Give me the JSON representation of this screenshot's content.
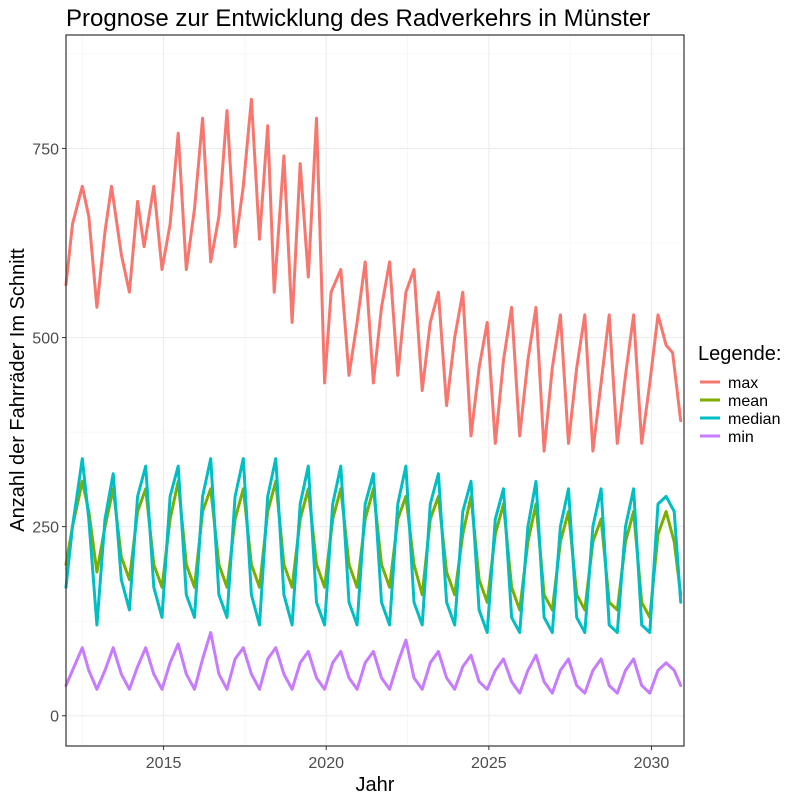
{
  "chart_data": {
    "type": "line",
    "title": "Prognose zur Entwicklung des Radverkehrs in  Münster",
    "xlabel": "Jahr",
    "ylabel": "Anzahl der Fahrräder Im Schnitt",
    "xlim": [
      2012.0,
      2031.0
    ],
    "ylim": [
      -40,
      900
    ],
    "x_ticks": [
      2015,
      2020,
      2025,
      2030
    ],
    "y_ticks": [
      0,
      250,
      500,
      750
    ],
    "grid": true,
    "legend": {
      "title": "Legende:",
      "placement": "right",
      "entries": [
        "max",
        "mean",
        "median",
        "min"
      ]
    },
    "series": [
      {
        "name": "max",
        "color": "#F8766D",
        "x": [
          2012.0,
          2012.2,
          2012.5,
          2012.7,
          2012.95,
          2013.2,
          2013.4,
          2013.7,
          2013.95,
          2014.2,
          2014.4,
          2014.7,
          2014.95,
          2015.2,
          2015.45,
          2015.7,
          2015.95,
          2016.2,
          2016.45,
          2016.7,
          2016.95,
          2017.2,
          2017.45,
          2017.7,
          2017.95,
          2018.2,
          2018.4,
          2018.7,
          2018.95,
          2019.2,
          2019.45,
          2019.7,
          2019.95,
          2020.15,
          2020.45,
          2020.7,
          2020.95,
          2021.2,
          2021.45,
          2021.7,
          2021.95,
          2022.2,
          2022.45,
          2022.7,
          2022.95,
          2023.2,
          2023.45,
          2023.7,
          2023.95,
          2024.2,
          2024.45,
          2024.7,
          2024.95,
          2025.2,
          2025.45,
          2025.7,
          2025.95,
          2026.2,
          2026.45,
          2026.7,
          2026.95,
          2027.2,
          2027.45,
          2027.7,
          2027.95,
          2028.2,
          2028.45,
          2028.7,
          2028.95,
          2029.2,
          2029.45,
          2029.7,
          2029.95,
          2030.2,
          2030.45,
          2030.65,
          2030.9
        ],
        "y": [
          570,
          650,
          700,
          660,
          540,
          640,
          700,
          610,
          560,
          680,
          620,
          700,
          590,
          650,
          770,
          590,
          670,
          790,
          600,
          660,
          800,
          620,
          700,
          815,
          630,
          780,
          560,
          740,
          520,
          730,
          580,
          790,
          440,
          560,
          590,
          450,
          520,
          600,
          440,
          540,
          600,
          450,
          560,
          590,
          430,
          520,
          560,
          410,
          500,
          560,
          370,
          460,
          520,
          360,
          470,
          540,
          370,
          470,
          540,
          350,
          460,
          530,
          360,
          460,
          530,
          350,
          440,
          530,
          360,
          450,
          530,
          360,
          440,
          530,
          490,
          480,
          390
        ]
      },
      {
        "name": "mean",
        "color": "#7CAE00",
        "x": [
          2012.0,
          2012.2,
          2012.5,
          2012.7,
          2012.95,
          2013.2,
          2013.45,
          2013.7,
          2013.95,
          2014.2,
          2014.45,
          2014.7,
          2014.95,
          2015.2,
          2015.45,
          2015.7,
          2015.95,
          2016.2,
          2016.45,
          2016.7,
          2016.95,
          2017.2,
          2017.45,
          2017.7,
          2017.95,
          2018.2,
          2018.45,
          2018.7,
          2018.95,
          2019.2,
          2019.45,
          2019.7,
          2019.95,
          2020.2,
          2020.45,
          2020.7,
          2020.95,
          2021.2,
          2021.45,
          2021.7,
          2021.95,
          2022.2,
          2022.45,
          2022.7,
          2022.95,
          2023.2,
          2023.45,
          2023.7,
          2023.95,
          2024.2,
          2024.45,
          2024.7,
          2024.95,
          2025.2,
          2025.45,
          2025.7,
          2025.95,
          2026.2,
          2026.45,
          2026.7,
          2026.95,
          2027.2,
          2027.45,
          2027.7,
          2027.95,
          2028.2,
          2028.45,
          2028.7,
          2028.95,
          2029.2,
          2029.45,
          2029.7,
          2029.95,
          2030.2,
          2030.45,
          2030.7,
          2030.9
        ],
        "y": [
          200,
          250,
          310,
          270,
          190,
          250,
          300,
          210,
          180,
          270,
          300,
          200,
          170,
          260,
          310,
          200,
          170,
          270,
          300,
          200,
          170,
          260,
          300,
          200,
          170,
          270,
          310,
          200,
          170,
          260,
          300,
          200,
          170,
          260,
          300,
          200,
          170,
          260,
          300,
          200,
          170,
          260,
          290,
          200,
          160,
          260,
          290,
          190,
          160,
          240,
          290,
          180,
          150,
          240,
          280,
          170,
          140,
          230,
          280,
          160,
          140,
          230,
          270,
          160,
          140,
          230,
          260,
          150,
          140,
          230,
          270,
          150,
          130,
          240,
          270,
          230,
          160
        ]
      },
      {
        "name": "median",
        "color": "#00BFC4",
        "x": [
          2012.0,
          2012.2,
          2012.5,
          2012.7,
          2012.95,
          2013.2,
          2013.45,
          2013.7,
          2013.95,
          2014.2,
          2014.45,
          2014.7,
          2014.95,
          2015.2,
          2015.45,
          2015.7,
          2015.95,
          2016.2,
          2016.45,
          2016.7,
          2016.95,
          2017.2,
          2017.45,
          2017.7,
          2017.95,
          2018.2,
          2018.45,
          2018.7,
          2018.95,
          2019.2,
          2019.45,
          2019.7,
          2019.95,
          2020.2,
          2020.45,
          2020.7,
          2020.95,
          2021.2,
          2021.45,
          2021.7,
          2021.95,
          2022.2,
          2022.45,
          2022.7,
          2022.95,
          2023.2,
          2023.45,
          2023.7,
          2023.95,
          2024.2,
          2024.45,
          2024.7,
          2024.95,
          2025.2,
          2025.45,
          2025.7,
          2025.95,
          2026.2,
          2026.45,
          2026.7,
          2026.95,
          2027.2,
          2027.45,
          2027.7,
          2027.95,
          2028.2,
          2028.45,
          2028.7,
          2028.95,
          2029.2,
          2029.45,
          2029.7,
          2029.95,
          2030.2,
          2030.45,
          2030.7,
          2030.9
        ],
        "y": [
          170,
          250,
          340,
          260,
          120,
          260,
          320,
          180,
          140,
          290,
          330,
          170,
          130,
          290,
          330,
          160,
          130,
          290,
          340,
          160,
          130,
          290,
          340,
          160,
          120,
          290,
          340,
          160,
          120,
          280,
          330,
          150,
          120,
          280,
          330,
          150,
          120,
          280,
          320,
          150,
          120,
          280,
          330,
          150,
          120,
          280,
          320,
          150,
          120,
          270,
          310,
          140,
          110,
          260,
          300,
          130,
          110,
          250,
          310,
          130,
          110,
          250,
          300,
          130,
          110,
          250,
          300,
          120,
          110,
          250,
          300,
          120,
          110,
          280,
          290,
          270,
          150
        ]
      },
      {
        "name": "min",
        "color": "#C77CFF",
        "x": [
          2012.0,
          2012.2,
          2012.5,
          2012.7,
          2012.95,
          2013.2,
          2013.45,
          2013.7,
          2013.95,
          2014.2,
          2014.45,
          2014.7,
          2014.95,
          2015.2,
          2015.45,
          2015.7,
          2015.95,
          2016.2,
          2016.45,
          2016.7,
          2016.95,
          2017.2,
          2017.45,
          2017.7,
          2017.95,
          2018.2,
          2018.45,
          2018.7,
          2018.95,
          2019.2,
          2019.45,
          2019.7,
          2019.95,
          2020.2,
          2020.45,
          2020.7,
          2020.95,
          2021.2,
          2021.45,
          2021.7,
          2021.95,
          2022.2,
          2022.45,
          2022.7,
          2022.95,
          2023.2,
          2023.45,
          2023.7,
          2023.95,
          2024.2,
          2024.45,
          2024.7,
          2024.95,
          2025.2,
          2025.45,
          2025.7,
          2025.95,
          2026.2,
          2026.45,
          2026.7,
          2026.95,
          2027.2,
          2027.45,
          2027.7,
          2027.95,
          2028.2,
          2028.45,
          2028.7,
          2028.95,
          2029.2,
          2029.45,
          2029.7,
          2029.95,
          2030.2,
          2030.45,
          2030.7,
          2030.9
        ],
        "y": [
          40,
          60,
          90,
          60,
          35,
          60,
          90,
          55,
          35,
          65,
          90,
          55,
          35,
          70,
          95,
          55,
          35,
          75,
          110,
          55,
          35,
          75,
          90,
          55,
          35,
          75,
          90,
          55,
          35,
          70,
          85,
          50,
          35,
          70,
          85,
          50,
          35,
          70,
          85,
          50,
          35,
          70,
          100,
          50,
          35,
          70,
          85,
          50,
          35,
          65,
          80,
          45,
          35,
          60,
          75,
          45,
          30,
          60,
          80,
          45,
          30,
          60,
          75,
          40,
          30,
          60,
          75,
          40,
          30,
          60,
          75,
          40,
          30,
          60,
          70,
          60,
          40
        ]
      }
    ]
  }
}
